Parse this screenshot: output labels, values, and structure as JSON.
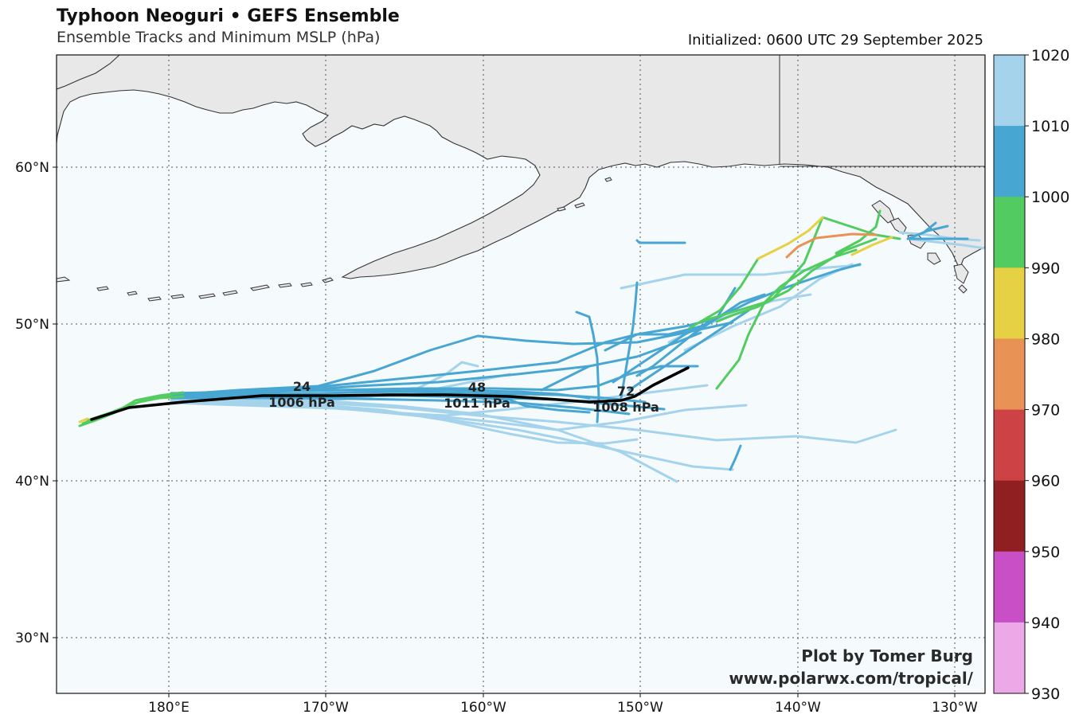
{
  "header": {
    "title": "Typhoon Neoguri • GEFS Ensemble",
    "subtitle": "Ensemble Tracks and Minimum MSLP (hPa)",
    "initialized": "Initialized: 0600 UTC 29 September 2025"
  },
  "map": {
    "lat_labels": [
      "60°N",
      "50°N",
      "40°N",
      "30°N"
    ],
    "lon_labels": [
      "180°E",
      "170°W",
      "160°W",
      "150°W",
      "140°W",
      "130°W"
    ],
    "colors": {
      "ocean": "#f5fbfd",
      "land": "#e8e8e8",
      "coast": "#333333",
      "mean_track": "#000000"
    }
  },
  "annotations": [
    {
      "hour": "24",
      "pressure": "1006 hPa"
    },
    {
      "hour": "48",
      "pressure": "1011 hPa"
    },
    {
      "hour": "72",
      "pressure": "1008 hPa"
    }
  ],
  "colorbar": {
    "labels": [
      "1020",
      "1010",
      "1000",
      "990",
      "980",
      "970",
      "960",
      "950",
      "940",
      "930"
    ],
    "colors": [
      "#a5d3ec",
      "#48a6d2",
      "#52cc60",
      "#e6d145",
      "#e89256",
      "#cc4245",
      "#8f1f20",
      "#c84fc6",
      "#eba9e8"
    ]
  },
  "credit": {
    "line1": "Plot by Tomer Burg",
    "line2": "www.polarwx.com/tropical/"
  }
}
